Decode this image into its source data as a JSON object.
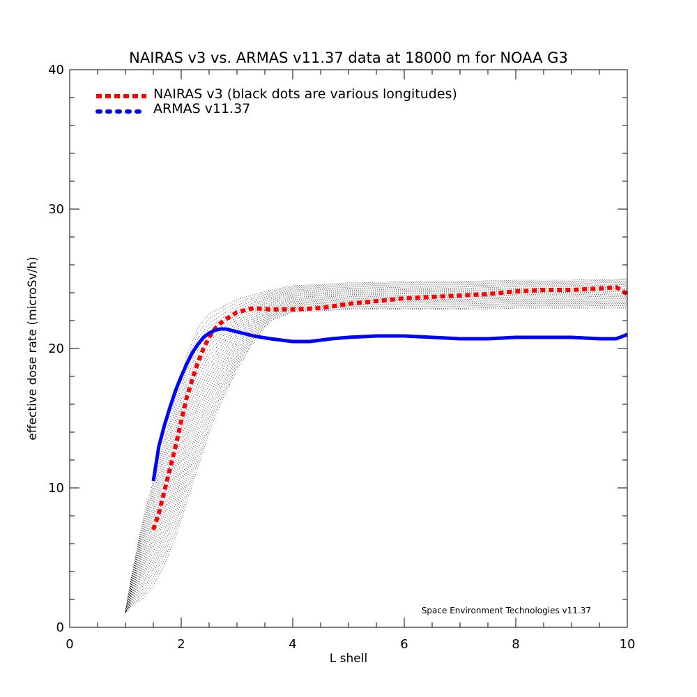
{
  "chart_data": {
    "type": "line",
    "title": "NAIRAS  v3 vs. ARMAS v11.37 data at 18000 m for NOAA G3",
    "xlabel": "L shell",
    "ylabel": "effective dose rate (microSv/h)",
    "xlim": [
      0,
      10
    ],
    "ylim": [
      0,
      40
    ],
    "x_ticks": [
      "0",
      "2",
      "4",
      "6",
      "8",
      "10"
    ],
    "y_ticks": [
      "0",
      "10",
      "20",
      "30",
      "40"
    ],
    "grid": false,
    "legend_placement": "top-left",
    "credit": "Space Environment Technologies v11.37",
    "series": [
      {
        "name": "NAIRAS v3 (black dots are various longitudes)",
        "style": "dotted",
        "color": "#ff0000",
        "x": [
          1.5,
          1.6,
          1.7,
          1.8,
          1.9,
          2.0,
          2.1,
          2.2,
          2.3,
          2.4,
          2.5,
          2.6,
          2.7,
          2.8,
          3.0,
          3.3,
          3.6,
          4.0,
          4.5,
          5.0,
          5.5,
          6.0,
          6.5,
          7.0,
          7.5,
          8.0,
          8.5,
          9.0,
          9.5,
          9.8,
          10.0
        ],
        "y": [
          7.0,
          8.2,
          9.8,
          11.4,
          13.0,
          14.8,
          16.5,
          17.8,
          19.0,
          20.0,
          20.8,
          21.4,
          21.8,
          22.1,
          22.6,
          22.9,
          22.8,
          22.8,
          22.9,
          23.2,
          23.4,
          23.6,
          23.7,
          23.8,
          23.9,
          24.1,
          24.2,
          24.2,
          24.3,
          24.4,
          23.9
        ]
      },
      {
        "name": "ARMAS v11.37",
        "style": "solid",
        "color": "#0000ff",
        "x": [
          1.5,
          1.6,
          1.7,
          1.8,
          1.9,
          2.0,
          2.1,
          2.2,
          2.3,
          2.4,
          2.5,
          2.6,
          2.7,
          2.8,
          3.0,
          3.3,
          3.6,
          4.0,
          4.3,
          4.7,
          5.0,
          5.5,
          6.0,
          6.5,
          7.0,
          7.5,
          8.0,
          8.5,
          9.0,
          9.5,
          9.8,
          10.0
        ],
        "y": [
          10.5,
          13.0,
          14.5,
          15.8,
          17.0,
          18.0,
          18.9,
          19.7,
          20.3,
          20.8,
          21.1,
          21.3,
          21.4,
          21.4,
          21.2,
          20.9,
          20.7,
          20.5,
          20.5,
          20.7,
          20.8,
          20.9,
          20.9,
          20.8,
          20.7,
          20.7,
          20.8,
          20.8,
          20.8,
          20.7,
          20.7,
          21.0
        ]
      }
    ],
    "background_scatter": {
      "description_color": "#000000",
      "lower_bound": {
        "x": [
          1.0,
          1.1,
          1.2,
          1.3,
          1.5,
          1.7,
          1.9,
          2.1,
          2.3,
          2.5,
          2.7,
          3.0,
          3.3,
          3.6,
          4.0,
          5.0,
          6.0,
          7.0,
          8.0,
          9.0,
          10.0
        ],
        "y": [
          1.0,
          1.5,
          1.8,
          2.0,
          3.0,
          4.5,
          6.5,
          9.0,
          11.5,
          14.0,
          16.0,
          18.5,
          20.5,
          22.0,
          22.6,
          22.8,
          22.8,
          22.8,
          22.9,
          22.9,
          22.9
        ]
      },
      "upper_bound": {
        "x": [
          1.0,
          1.1,
          1.2,
          1.3,
          1.4,
          1.5,
          1.6,
          1.7,
          1.8,
          1.9,
          2.0,
          2.1,
          2.2,
          2.3,
          2.5,
          3.0,
          3.5,
          4.0,
          5.0,
          6.0,
          7.0,
          8.0,
          9.0,
          10.0
        ],
        "y": [
          1.2,
          3.5,
          5.5,
          7.5,
          9.0,
          10.5,
          12.0,
          13.5,
          15.0,
          16.5,
          18.0,
          19.5,
          20.5,
          21.5,
          22.5,
          23.5,
          24.1,
          24.5,
          24.7,
          24.8,
          24.8,
          24.9,
          24.9,
          25.0
        ]
      }
    }
  }
}
